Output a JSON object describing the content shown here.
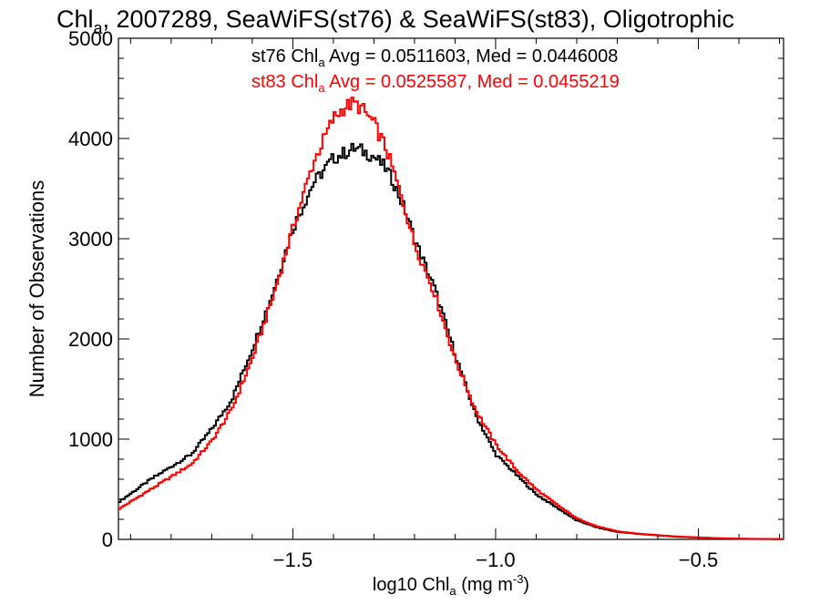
{
  "chart_data": {
    "type": "line",
    "title": {
      "pre": "Chl",
      "sub": "a",
      "post": ", 2007289, SeaWiFS(st76) & SeaWiFS(st83), Oligotrophic"
    },
    "xlabel": {
      "pre": "log10 Chl",
      "sub": "a",
      "post": " (mg m",
      "sup": "-3",
      "end": ")"
    },
    "ylabel": "Number of Observations",
    "xlim": [
      -1.93,
      -0.29
    ],
    "ylim": [
      0,
      5000
    ],
    "x_ticks": [
      {
        "value": -1.5,
        "label": "−1.5"
      },
      {
        "value": -1.0,
        "label": "−1.0"
      },
      {
        "value": -0.5,
        "label": "−0.5"
      }
    ],
    "y_ticks": [
      {
        "value": 0,
        "label": "0"
      },
      {
        "value": 1000,
        "label": "1000"
      },
      {
        "value": 2000,
        "label": "2000"
      },
      {
        "value": 3000,
        "label": "3000"
      },
      {
        "value": 4000,
        "label": "4000"
      },
      {
        "value": 5000,
        "label": "5000"
      }
    ],
    "stats": [
      {
        "color": "#000000",
        "pre": "st76 Chl",
        "sub": "a",
        "post": " Avg = 0.0511603, Med = 0.0446008"
      },
      {
        "color": "#ff0000",
        "pre": "st83 Chl",
        "sub": "a",
        "post": " Avg = 0.0525587, Med = 0.0455219"
      }
    ],
    "series": [
      {
        "color": "#000000",
        "x": [
          -1.93,
          -1.85,
          -1.75,
          -1.7,
          -1.65,
          -1.6,
          -1.55,
          -1.5,
          -1.45,
          -1.4,
          -1.37,
          -1.35,
          -1.33,
          -1.3,
          -1.27,
          -1.25,
          -1.22,
          -1.2,
          -1.15,
          -1.1,
          -1.05,
          -1.0,
          -0.95,
          -0.9,
          -0.85,
          -0.8,
          -0.75,
          -0.7,
          -0.65,
          -0.6,
          -0.55,
          -0.5,
          -0.45,
          -0.4,
          -0.35,
          -0.29
        ],
        "y": [
          370,
          600,
          850,
          1100,
          1400,
          1900,
          2450,
          3100,
          3550,
          3800,
          3860,
          3900,
          3880,
          3820,
          3700,
          3550,
          3250,
          3000,
          2500,
          1850,
          1250,
          850,
          650,
          450,
          320,
          190,
          120,
          75,
          55,
          40,
          25,
          18,
          10,
          6,
          4,
          2
        ]
      },
      {
        "color": "#ff0000",
        "x": [
          -1.93,
          -1.85,
          -1.75,
          -1.7,
          -1.65,
          -1.6,
          -1.55,
          -1.5,
          -1.45,
          -1.4,
          -1.37,
          -1.35,
          -1.33,
          -1.3,
          -1.27,
          -1.25,
          -1.22,
          -1.2,
          -1.15,
          -1.1,
          -1.05,
          -1.0,
          -0.95,
          -0.9,
          -0.85,
          -0.8,
          -0.75,
          -0.7,
          -0.65,
          -0.6,
          -0.55,
          -0.5,
          -0.45,
          -0.4,
          -0.35,
          -0.29
        ],
        "y": [
          300,
          500,
          750,
          980,
          1300,
          1800,
          2400,
          3100,
          3750,
          4200,
          4320,
          4350,
          4300,
          4150,
          3900,
          3650,
          3250,
          2950,
          2450,
          1800,
          1300,
          950,
          700,
          500,
          350,
          210,
          130,
          80,
          58,
          42,
          28,
          20,
          12,
          7,
          5,
          3
        ]
      }
    ],
    "grid": false,
    "legend": "top-center"
  }
}
